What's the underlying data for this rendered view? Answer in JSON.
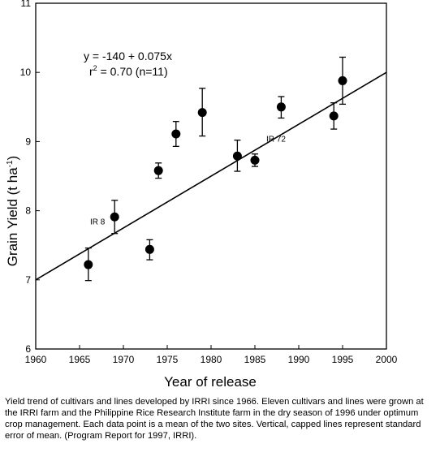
{
  "chart_data": {
    "type": "scatter",
    "xlabel": "Year of release",
    "ylabel": "Grain Yield (t ha",
    "ylabel_sup": "-1",
    "xlim": [
      1960,
      2000
    ],
    "ylim": [
      6,
      11
    ],
    "x_ticks": [
      "1960",
      "1965",
      "1970",
      "1975",
      "1980",
      "1985",
      "1990",
      "1995",
      "2000"
    ],
    "y_ticks": [
      "6",
      "7",
      "8",
      "9",
      "10",
      "11"
    ],
    "grid": false,
    "points": [
      {
        "x": 1966,
        "y": 7.22,
        "err_low": 6.99,
        "err_high": 7.46
      },
      {
        "x": 1969,
        "y": 7.91,
        "err_low": 7.67,
        "err_high": 8.15
      },
      {
        "x": 1973,
        "y": 7.44,
        "err_low": 7.29,
        "err_high": 7.58
      },
      {
        "x": 1974,
        "y": 8.58,
        "err_low": 8.47,
        "err_high": 8.69
      },
      {
        "x": 1976,
        "y": 9.11,
        "err_low": 8.93,
        "err_high": 9.29
      },
      {
        "x": 1979,
        "y": 9.42,
        "err_low": 9.08,
        "err_high": 9.77
      },
      {
        "x": 1983,
        "y": 8.79,
        "err_low": 8.57,
        "err_high": 9.02
      },
      {
        "x": 1985,
        "y": 8.73,
        "err_low": 8.64,
        "err_high": 8.82
      },
      {
        "x": 1988,
        "y": 9.5,
        "err_low": 9.34,
        "err_high": 9.65
      },
      {
        "x": 1994,
        "y": 9.37,
        "err_low": 9.18,
        "err_high": 9.56
      },
      {
        "x": 1995,
        "y": 9.88,
        "err_low": 9.54,
        "err_high": 10.22
      }
    ],
    "trendline": {
      "intercept": -140,
      "slope": 0.075
    },
    "equation_line1": "y = -140 + 0.075x",
    "r2_label": "r",
    "r2_sup": "2",
    "r2_value": " = 0.70 (n=11)",
    "point_labels": [
      {
        "text": "IR 8",
        "x": 1966.2,
        "y": 7.8
      },
      {
        "text": "IR 72",
        "x": 1986.3,
        "y": 9.0
      }
    ],
    "colors": {
      "ink": "#000000",
      "background": "#ffffff"
    }
  },
  "caption": "Yield trend of cultivars and lines developed by IRRI since 1966. Eleven cultivars and lines were grown at the IRRI farm and the Philippine Rice Research Institute farm in the dry season of 1996 under optimum crop management. Each data point is a mean of the two sites. Vertical, capped lines represent standard error of mean. (Program Report for 1997, IRRI)."
}
